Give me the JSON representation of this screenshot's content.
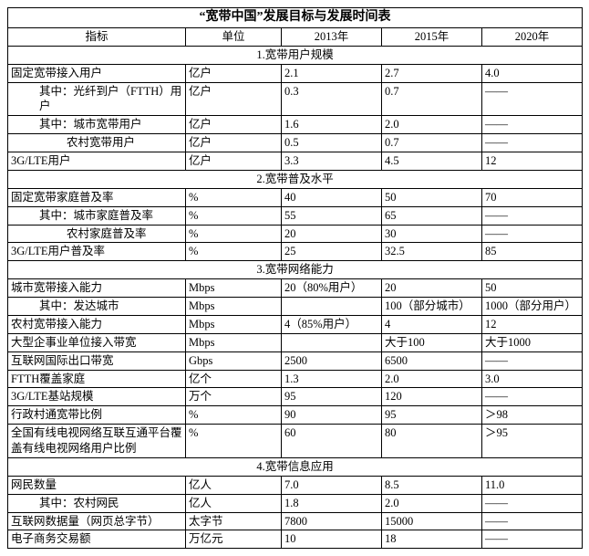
{
  "title": "“宽带中国”发展目标与发展时间表",
  "columns": {
    "c1": "指标",
    "c2": "单位",
    "c3": "2013年",
    "c4": "2015年",
    "c5": "2020年"
  },
  "sections": {
    "s1": "1.宽带用户规模",
    "s2": "2.宽带普及水平",
    "s3": "3.宽带网络能力",
    "s4": "4.宽带信息应用"
  },
  "rows": {
    "r1": {
      "label": "固定宽带接入用户",
      "unit": "亿户",
      "y2013": "2.1",
      "y2015": "2.7",
      "y2020": "4.0",
      "indent": 0
    },
    "r2": {
      "label": "其中：光纤到户（FTTH）用户",
      "unit": "亿户",
      "y2013": "0.3",
      "y2015": "0.7",
      "y2020": "——",
      "indent": 1
    },
    "r3": {
      "label": "其中：城市宽带用户",
      "unit": "亿户",
      "y2013": "1.6",
      "y2015": "2.0",
      "y2020": "——",
      "indent": 1
    },
    "r4": {
      "label": "农村宽带用户",
      "unit": "亿户",
      "y2013": "0.5",
      "y2015": "0.7",
      "y2020": "——",
      "indent": 2
    },
    "r5": {
      "label": "3G/LTE用户",
      "unit": "亿户",
      "y2013": "3.3",
      "y2015": "4.5",
      "y2020": "12",
      "indent": 0
    },
    "r6": {
      "label": "固定宽带家庭普及率",
      "unit": "%",
      "y2013": "40",
      "y2015": "50",
      "y2020": "70",
      "indent": 0
    },
    "r7": {
      "label": "其中：城市家庭普及率",
      "unit": "%",
      "y2013": "55",
      "y2015": "65",
      "y2020": "——",
      "indent": 1
    },
    "r8": {
      "label": "农村家庭普及率",
      "unit": "%",
      "y2013": "20",
      "y2015": "30",
      "y2020": "——",
      "indent": 2
    },
    "r9": {
      "label": "3G/LTE用户普及率",
      "unit": "%",
      "y2013": "25",
      "y2015": "32.5",
      "y2020": "85",
      "indent": 0
    },
    "r10": {
      "label": "城市宽带接入能力",
      "unit": "Mbps",
      "y2013": "20（80%用户）",
      "y2015": "20",
      "y2020": "50",
      "indent": 0
    },
    "r11": {
      "label": "其中：发达城市",
      "unit": "Mbps",
      "y2013": "",
      "y2015": "100（部分城市）",
      "y2020": "1000（部分用户）",
      "indent": 1
    },
    "r12": {
      "label": "农村宽带接入能力",
      "unit": "Mbps",
      "y2013": "4（85%用户）",
      "y2015": "4",
      "y2020": "12",
      "indent": 0
    },
    "r13": {
      "label": "大型企事业单位接入带宽",
      "unit": "Mbps",
      "y2013": "",
      "y2015": "大于100",
      "y2020": "大于1000",
      "indent": 0
    },
    "r14": {
      "label": "互联网国际出口带宽",
      "unit": "Gbps",
      "y2013": "2500",
      "y2015": "6500",
      "y2020": "——",
      "indent": 0
    },
    "r15": {
      "label": "FTTH覆盖家庭",
      "unit": "亿个",
      "y2013": "1.3",
      "y2015": "2.0",
      "y2020": "3.0",
      "indent": 0
    },
    "r16": {
      "label": "3G/LTE基站规模",
      "unit": "万个",
      "y2013": "95",
      "y2015": "120",
      "y2020": "——",
      "indent": 0
    },
    "r17": {
      "label": "行政村通宽带比例",
      "unit": "%",
      "y2013": "90",
      "y2015": "95",
      "y2020": "＞98",
      "indent": 0
    },
    "r18": {
      "label": "全国有线电视网络互联互通平台覆盖有线电视网络用户比例",
      "unit": "%",
      "y2013": "60",
      "y2015": "80",
      "y2020": "＞95",
      "indent": 0
    },
    "r19": {
      "label": "网民数量",
      "unit": "亿人",
      "y2013": "7.0",
      "y2015": "8.5",
      "y2020": "11.0",
      "indent": 0
    },
    "r20": {
      "label": "其中：农村网民",
      "unit": "亿人",
      "y2013": "1.8",
      "y2015": "2.0",
      "y2020": "——",
      "indent": 1
    },
    "r21": {
      "label": "互联网数据量（网页总字节）",
      "unit": "太字节",
      "y2013": "7800",
      "y2015": "15000",
      "y2020": "——",
      "indent": 0
    },
    "r22": {
      "label": "电子商务交易额",
      "unit": "万亿元",
      "y2013": "10",
      "y2015": "18",
      "y2020": "——",
      "indent": 0
    }
  },
  "layout": [
    "r1",
    "r2",
    "r3",
    "r4",
    "r5",
    "S:s2",
    "r6",
    "r7",
    "r8",
    "r9",
    "S:s3",
    "r10",
    "r11",
    "r12",
    "r13",
    "r14",
    "r15",
    "r16",
    "r17",
    "r18",
    "S:s4",
    "r19",
    "r20",
    "r21",
    "r22"
  ],
  "style": {
    "border_color": "#000000",
    "bg": "#ffffff",
    "font_size": 12.5,
    "title_font_size": 14
  }
}
